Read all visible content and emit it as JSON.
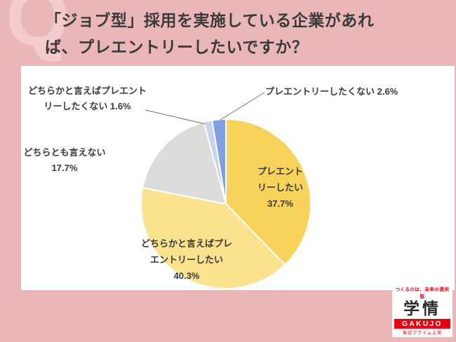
{
  "watermark": {
    "letter": "Q"
  },
  "title": {
    "line1": "「ジョブ型」採用を実施している企業があれ",
    "line2": "ば、プレエントリーしたいですか？"
  },
  "chart_data": {
    "type": "pie",
    "title": "「ジョブ型」採用を実施している企業があれば、プレエントリーしたいですか？",
    "unit": "%",
    "start_angle_deg": 0,
    "direction": "clockwise",
    "legend_position": "none",
    "segments": [
      {
        "label": "プレエントリーしたい",
        "value": 37.7,
        "color": "#F8D35B",
        "label_position": "inside"
      },
      {
        "label": "どちらかと言えばプレエントリーしたい",
        "value": 40.3,
        "color": "#FBE28F",
        "label_position": "inside"
      },
      {
        "label": "どちらとも言えない",
        "value": 17.7,
        "color": "#DBDBDB",
        "label_position": "outside"
      },
      {
        "label": "どちらかと言えばプレエントリーしたくない",
        "value": 1.6,
        "color": "#C8D3EF",
        "label_position": "outside"
      },
      {
        "label": "プレエントリーしたくない",
        "value": 2.6,
        "color": "#7F9FE0",
        "label_position": "outside"
      }
    ]
  },
  "pie_labels": {
    "want": {
      "l1": "プレエント",
      "l2": "リーしたい",
      "l3": "37.7%"
    },
    "somewhat_want": {
      "l1": "どちらかと言えばプレ",
      "l2": "エントリーしたい",
      "l3": "40.3%"
    },
    "neutral": {
      "l1": "どちらとも言えない",
      "l2": "17.7%"
    },
    "somewhat_not": {
      "l1": "どちらかと言えばプレエント",
      "l2": "リーしたくない 1.6%"
    },
    "not_want": {
      "l1": "プレエントリーしたくない 2.6%"
    }
  },
  "logo": {
    "tagline": "つくるのは、未来の選択肢",
    "name": "学情",
    "romaji": "GAKUJO",
    "subtext": "東証プライム上場"
  },
  "colors": {
    "frame": "#E9B7B7",
    "panel": "#FFFFFF",
    "title_text": "#3A3A3A",
    "logo_red": "#E60012"
  }
}
